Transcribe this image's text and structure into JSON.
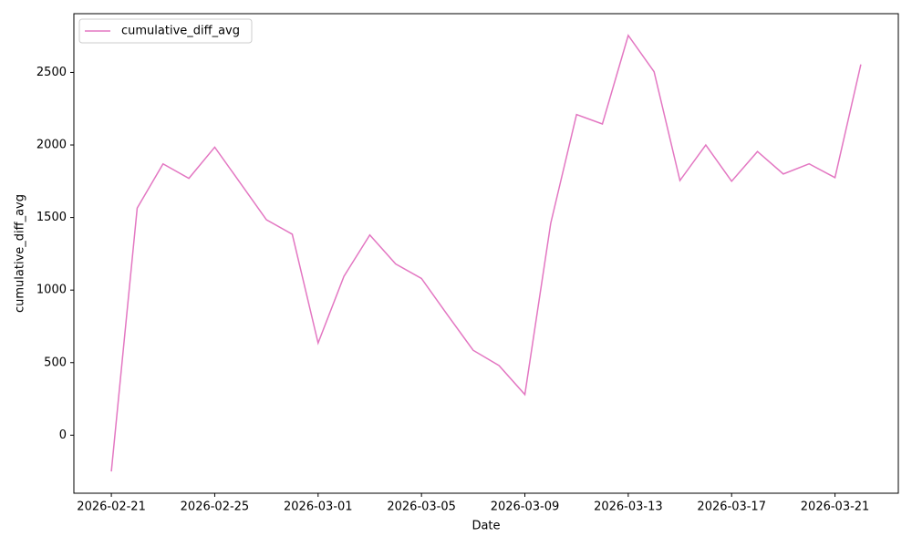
{
  "chart_data": {
    "type": "line",
    "x_label": "Date",
    "y_label": "cumulative_diff_avg",
    "x": [
      "2026-02-21",
      "2026-02-22",
      "2026-02-23",
      "2026-02-24",
      "2026-02-25",
      "2026-02-26",
      "2026-02-27",
      "2026-02-28",
      "2026-03-01",
      "2026-03-02",
      "2026-03-03",
      "2026-03-04",
      "2026-03-05",
      "2026-03-06",
      "2026-03-07",
      "2026-03-08",
      "2026-03-09",
      "2026-03-10",
      "2026-03-11",
      "2026-03-12",
      "2026-03-13",
      "2026-03-14",
      "2026-03-15",
      "2026-03-16",
      "2026-03-17",
      "2026-03-18",
      "2026-03-19",
      "2026-03-20",
      "2026-03-21",
      "2026-03-22"
    ],
    "series": [
      {
        "name": "cumulative_diff_avg",
        "color": "#e377c2",
        "values": [
          -250,
          1565,
          1870,
          1770,
          1985,
          1735,
          1485,
          1385,
          635,
          1095,
          1380,
          1180,
          1080,
          830,
          585,
          480,
          280,
          1460,
          2210,
          2145,
          2755,
          2505,
          1755,
          2000,
          1750,
          1955,
          1800,
          1870,
          1775,
          2555
        ]
      }
    ],
    "xticks": [
      "2026-02-21",
      "2026-02-25",
      "2026-03-01",
      "2026-03-05",
      "2026-03-09",
      "2026-03-13",
      "2026-03-17",
      "2026-03-21"
    ],
    "ylim": [
      -400,
      2905
    ],
    "yticks": [
      0,
      500,
      1000,
      1500,
      2000,
      2500
    ],
    "grid": false,
    "legend": "upper-left"
  }
}
